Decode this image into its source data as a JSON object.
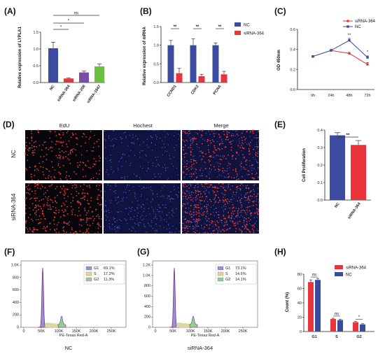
{
  "panel_labels": [
    "(A)",
    "(B)",
    "(C)",
    "(D)",
    "(E)",
    "(F)",
    "(G)",
    "(H)"
  ],
  "micrograph": {
    "column_headers": [
      "EdU",
      "Hochest",
      "Merge"
    ],
    "row_labels": [
      "NC",
      "siRNA-364"
    ]
  },
  "flow": {
    "xlabel": "PE-Texas Red-A",
    "ticks": [
      "0",
      "50K",
      "100K",
      "150K",
      "200K",
      "250K"
    ],
    "captions": [
      "NC",
      "siRNA-364"
    ]
  },
  "colors": {
    "blue": "#3b4ba0",
    "red": "#e8343a",
    "purple": "#7b4ca3",
    "green": "#6cbf3f",
    "flow_g1": "#9a8fd0",
    "flow_s": "#dbd99a",
    "flow_g2": "#8fd08f"
  },
  "chart_data": [
    {
      "panel": "A",
      "type": "bar",
      "ylabel": "Relative expression of LYPLA1",
      "categories": [
        "NC",
        "siRNA-364",
        "siRNA-208",
        "siRNA-1847"
      ],
      "values": [
        1.02,
        0.12,
        0.3,
        0.48
      ],
      "errors": [
        0.18,
        0.02,
        0.04,
        0.07
      ],
      "bar_colors": [
        "#3b4ba0",
        "#e8343a",
        "#7b4ca3",
        "#6cbf3f"
      ],
      "ylim": [
        0,
        1.5
      ],
      "yticks": [
        "0.0",
        "0.5",
        "1.0",
        "1.5"
      ],
      "significance": [
        {
          "from": 0,
          "to": 1,
          "label": "*"
        },
        {
          "from": 0,
          "to": 2,
          "label": "*"
        },
        {
          "from": 0,
          "to": 3,
          "label": "ns"
        }
      ]
    },
    {
      "panel": "B",
      "type": "bar",
      "ylabel": "Relative expression of mRNA",
      "categories": [
        "CCND1",
        "CDK2",
        "PCNA"
      ],
      "series": [
        {
          "name": "NC",
          "color": "#3b4ba0",
          "values": [
            1.0,
            1.0,
            1.0
          ],
          "errors": [
            0.13,
            0.17,
            0.06
          ]
        },
        {
          "name": "siRNA-364",
          "color": "#e8343a",
          "values": [
            0.25,
            0.17,
            0.22
          ],
          "errors": [
            0.13,
            0.05,
            0.08
          ]
        }
      ],
      "ylim": [
        0,
        1.5
      ],
      "yticks": [
        "0.0",
        "0.5",
        "1.0",
        "1.5"
      ],
      "significance": [
        "**",
        "**",
        "**"
      ],
      "legend": "top-right"
    },
    {
      "panel": "C",
      "type": "line",
      "ylabel": "OD 450nm",
      "categories": [
        "0h",
        "24h",
        "48h",
        "72h"
      ],
      "series": [
        {
          "name": "siRNA-364",
          "color": "#e8343a",
          "values": [
            0.33,
            0.39,
            0.36,
            0.25
          ],
          "errors": [
            0.005,
            0.008,
            0.01,
            0.02
          ]
        },
        {
          "name": "NC",
          "color": "#3b4ba0",
          "values": [
            0.33,
            0.39,
            0.49,
            0.32
          ],
          "errors": [
            0.005,
            0.01,
            0.02,
            0.015
          ]
        }
      ],
      "ylim": [
        0.0,
        0.6
      ],
      "yticks": [
        "0.0",
        "0.2",
        "0.4",
        "0.6"
      ],
      "annotations": [
        {
          "at": 2,
          "label": "**"
        },
        {
          "at": 3,
          "label": "*"
        }
      ],
      "legend": "top-right"
    },
    {
      "panel": "E",
      "type": "bar",
      "ylabel": "Cell Proliferation",
      "categories": [
        "NC",
        "siRNA-364"
      ],
      "values": [
        0.37,
        0.315
      ],
      "errors": [
        0.015,
        0.025
      ],
      "bar_colors": [
        "#3b4ba0",
        "#e8343a"
      ],
      "ylim": [
        0,
        0.4
      ],
      "yticks": [
        "0.0",
        "0.1",
        "0.2",
        "0.3",
        "0.4"
      ],
      "significance": "**"
    },
    {
      "panel": "F",
      "type": "area",
      "legend": [
        {
          "label": "G1",
          "value": "69.1%"
        },
        {
          "label": "S",
          "value": "17.2%"
        },
        {
          "label": "G2",
          "value": "11.3%"
        }
      ],
      "yticks": [
        "0",
        "200",
        "400",
        "600",
        "800",
        "1.0K"
      ]
    },
    {
      "panel": "G",
      "type": "area",
      "legend": [
        {
          "label": "G1",
          "value": "73.1%"
        },
        {
          "label": "S",
          "value": "14.6%"
        },
        {
          "label": "G2",
          "value": "14.1%"
        }
      ],
      "yticks": [
        "0",
        "200",
        "400",
        "600",
        "800",
        "1.0K",
        "1.2K"
      ]
    },
    {
      "panel": "H",
      "type": "bar",
      "ylabel": "Count (%)",
      "categories": [
        "G1",
        "S",
        "G2"
      ],
      "series": [
        {
          "name": "siRNA-364",
          "color": "#e8343a",
          "values": [
            69,
            17.5,
            13
          ],
          "errors": [
            3,
            1,
            1
          ]
        },
        {
          "name": "NC",
          "color": "#3b4ba0",
          "values": [
            72,
            16,
            10
          ],
          "errors": [
            2,
            1,
            1
          ]
        }
      ],
      "ylim": [
        0,
        80
      ],
      "yticks": [
        "0",
        "20",
        "40",
        "60",
        "80"
      ],
      "significance": [
        "ns",
        "ns",
        "*"
      ],
      "legend": "top-right"
    }
  ]
}
